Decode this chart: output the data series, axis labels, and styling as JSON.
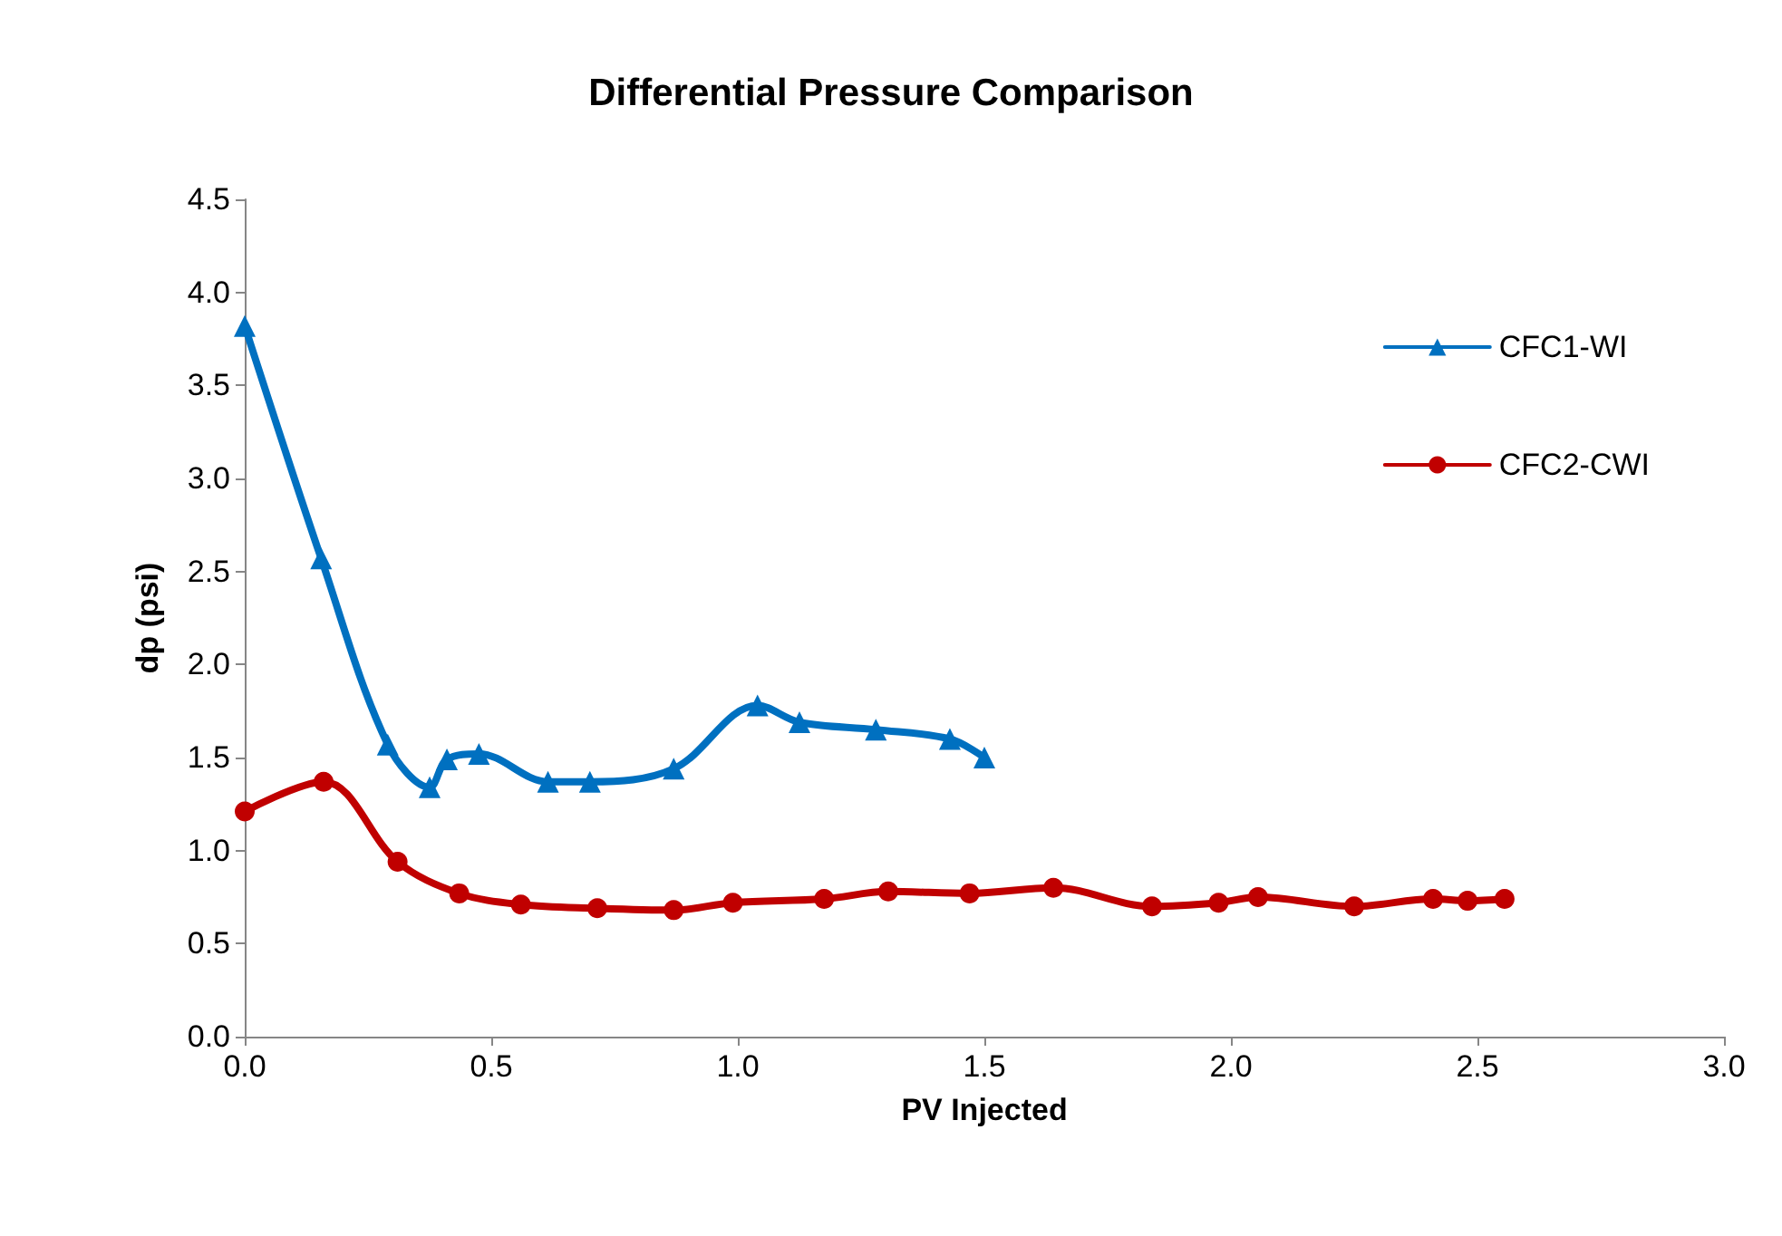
{
  "chart_data": {
    "type": "line",
    "title": "Differential Pressure Comparison",
    "xlabel": "PV Injected",
    "ylabel": "dp (psi)",
    "xlim": [
      0,
      3
    ],
    "xticks": [
      {
        "value": 0,
        "label": "0.0"
      },
      {
        "value": 0.5,
        "label": "0.5"
      },
      {
        "value": 1,
        "label": "1.0"
      },
      {
        "value": 1.5,
        "label": "1.5"
      },
      {
        "value": 2,
        "label": "2.0"
      },
      {
        "value": 2.5,
        "label": "2.5"
      },
      {
        "value": 3,
        "label": "3.0"
      }
    ],
    "ylim": [
      0,
      4.5
    ],
    "yticks": [
      {
        "value": 0,
        "label": "0.0"
      },
      {
        "value": 0.5,
        "label": "0.5"
      },
      {
        "value": 1,
        "label": "1.0"
      },
      {
        "value": 1.5,
        "label": "1.5"
      },
      {
        "value": 2,
        "label": "2.0"
      },
      {
        "value": 2.5,
        "label": "2.5"
      },
      {
        "value": 3,
        "label": "3.0"
      },
      {
        "value": 3.5,
        "label": "3.5"
      },
      {
        "value": 4,
        "label": "4.0"
      },
      {
        "value": 4.5,
        "label": "4.5"
      }
    ],
    "grid": false,
    "legend": "top right",
    "line_style": "solid",
    "series": [
      {
        "name": "CFC1-WI",
        "color": "#0070c0",
        "marker": "triangle",
        "x": [
          0,
          0.155,
          0.29,
          0.375,
          0.41,
          0.475,
          0.615,
          0.7,
          0.87,
          1.04,
          1.125,
          1.28,
          1.43,
          1.5
        ],
        "values": [
          3.82,
          2.57,
          1.57,
          1.34,
          1.49,
          1.52,
          1.37,
          1.37,
          1.44,
          1.78,
          1.69,
          1.65,
          1.6,
          1.5
        ]
      },
      {
        "name": "CFC2-CWI",
        "color": "#c00000",
        "marker": "circle",
        "x": [
          0,
          0.16,
          0.31,
          0.435,
          0.56,
          0.715,
          0.87,
          0.99,
          1.175,
          1.305,
          1.47,
          1.64,
          1.84,
          1.975,
          2.055,
          2.25,
          2.41,
          2.48,
          2.555
        ],
        "values": [
          1.21,
          1.37,
          0.94,
          0.77,
          0.71,
          0.69,
          0.68,
          0.72,
          0.74,
          0.78,
          0.77,
          0.8,
          0.7,
          0.72,
          0.75,
          0.7,
          0.74,
          0.73,
          0.74
        ]
      }
    ]
  }
}
